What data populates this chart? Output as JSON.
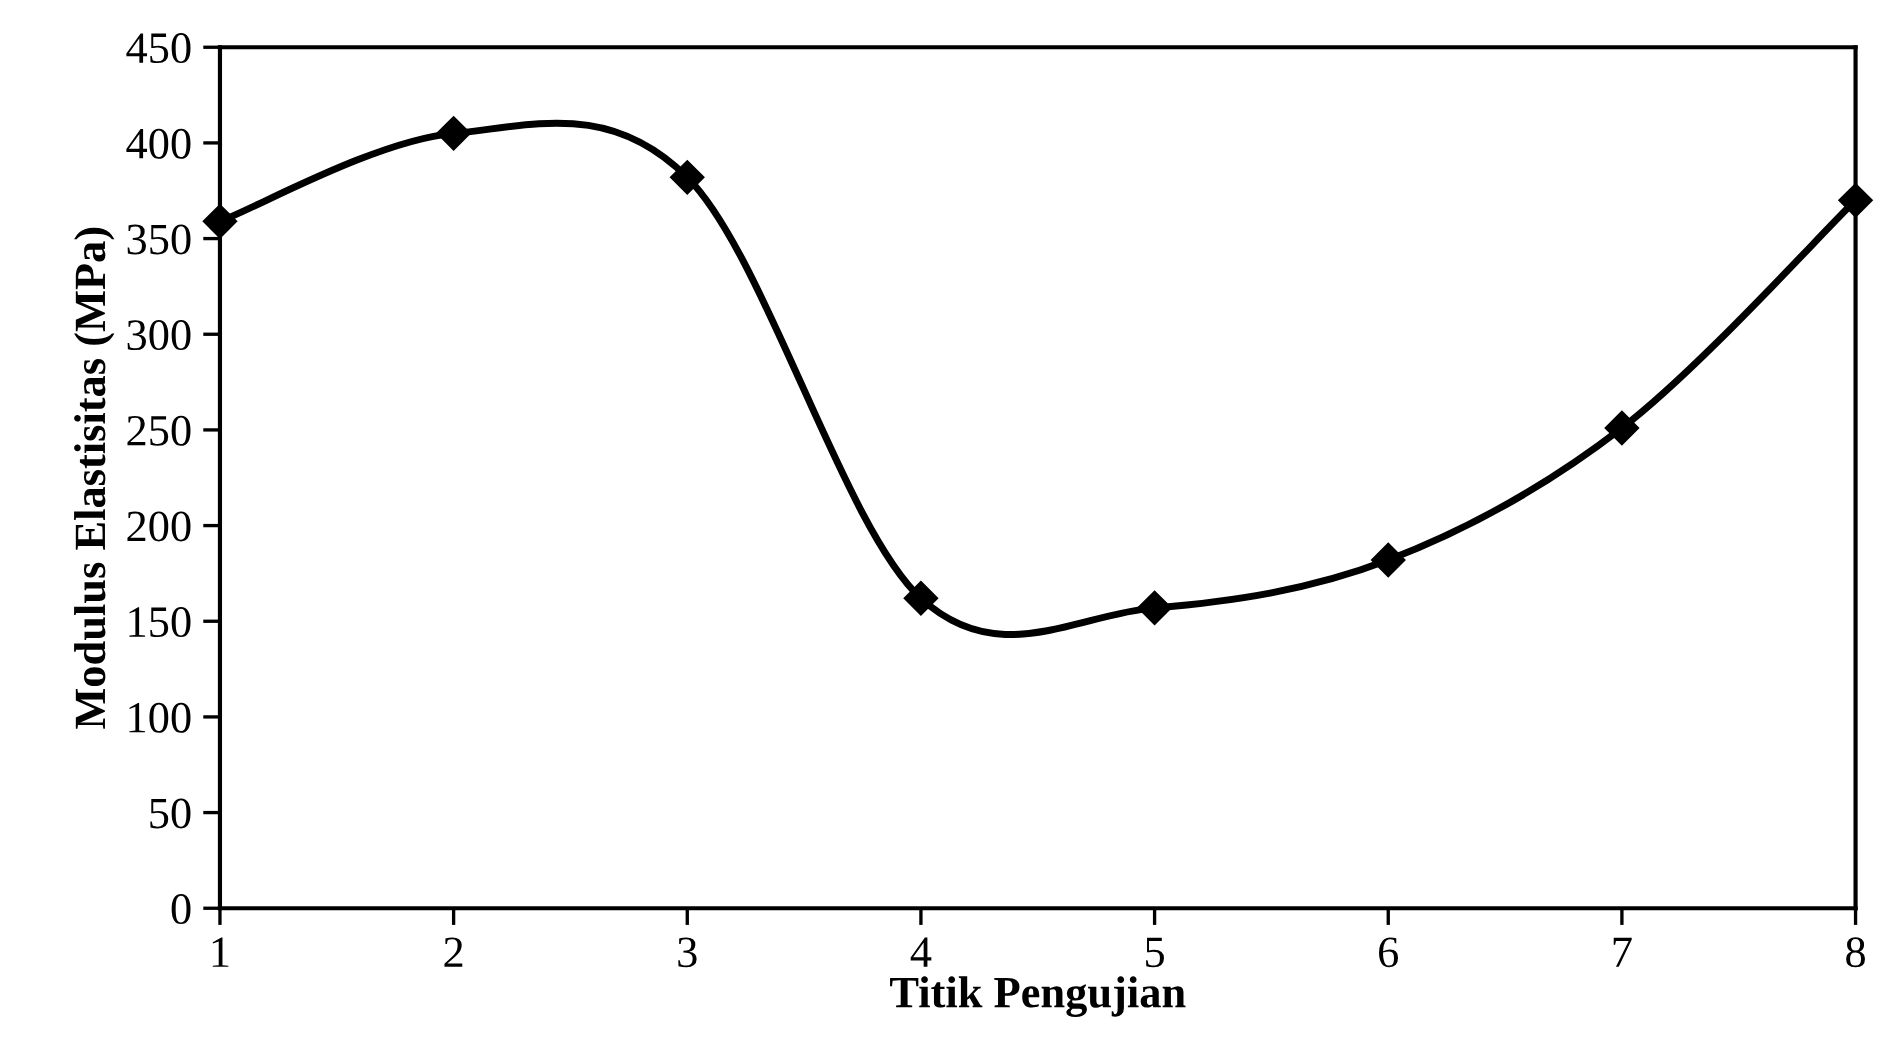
{
  "chart_data": {
    "type": "line",
    "xlabel": "Titik Pengujian",
    "ylabel": "Modulus Elastisitas (MPa)",
    "x": [
      1,
      2,
      3,
      4,
      5,
      6,
      7,
      8
    ],
    "series": [
      {
        "color": "#000000",
        "values": [
          359,
          405,
          382,
          162,
          157,
          182,
          251,
          370
        ]
      }
    ],
    "xlim": [
      1,
      8
    ],
    "xticks": [
      1,
      2,
      3,
      4,
      5,
      6,
      7,
      8
    ],
    "ylim": [
      0,
      450
    ],
    "yticks": [
      0,
      50,
      100,
      150,
      200,
      250,
      300,
      350,
      400,
      450
    ],
    "marker": "diamond",
    "line_style": "solid",
    "grid": false,
    "legend": false
  }
}
